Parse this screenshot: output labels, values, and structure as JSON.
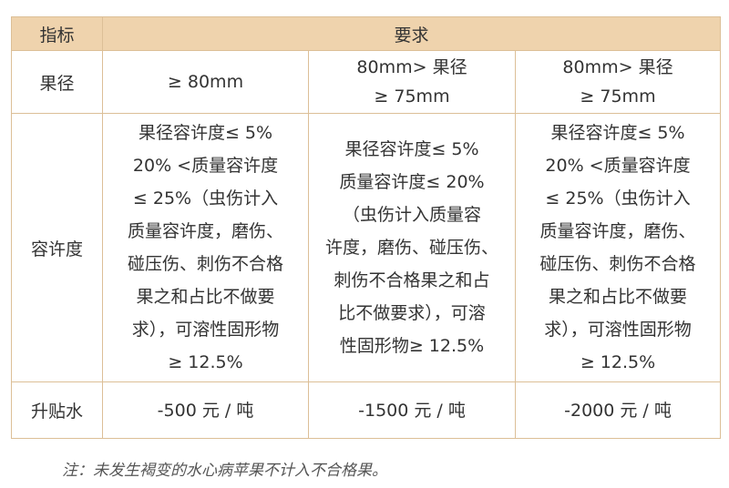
{
  "table": {
    "header": [
      "指标",
      "要求"
    ],
    "rows": [
      {
        "label": "果径",
        "cells": [
          [
            "≥ 80mm"
          ],
          [
            "80mm> 果径",
            "≥ 75mm"
          ],
          [
            "80mm> 果径",
            "≥ 75mm"
          ]
        ]
      },
      {
        "label": "容许度",
        "cells": [
          [
            "果径容许度≤ 5%",
            "20% <质量容许度",
            "≤ 25%（虫伤计入",
            "质量容许度，磨伤、",
            "碰压伤、刺伤不合格",
            "果之和占比不做要",
            "求），可溶性固形物",
            "≥ 12.5%"
          ],
          [
            "果径容许度≤ 5%",
            "质量容许度≤ 20%",
            "（虫伤计入质量容",
            "许度，磨伤、碰压伤、",
            "刺伤不合格果之和占",
            "比不做要求），可溶",
            "性固形物≥ 12.5%"
          ],
          [
            "果径容许度≤ 5%",
            "20% <质量容许度",
            "≤ 25%（虫伤计入",
            "质量容许度，磨伤、",
            "碰压伤、刺伤不合格",
            "果之和占比不做要",
            "求），可溶性固形物",
            "≥ 12.5%"
          ]
        ]
      },
      {
        "label": "升贴水",
        "cells": [
          [
            "-500 元 / 吨"
          ],
          [
            "-1500 元 / 吨"
          ],
          [
            "-2000 元 / 吨"
          ]
        ]
      }
    ],
    "note": "注：未发生褐变的水心病苹果不计入不合格果。"
  }
}
